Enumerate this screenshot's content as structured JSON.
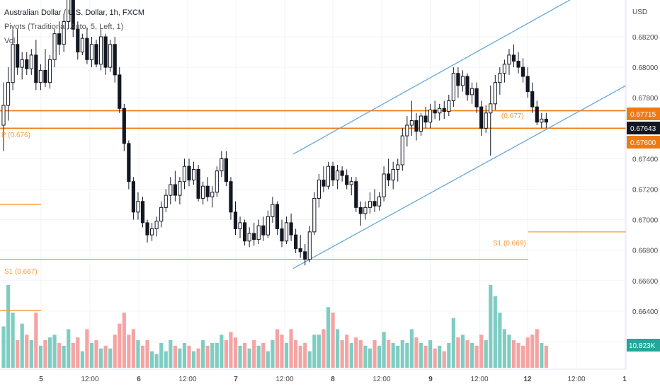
{
  "header": {
    "symbol_title": "Australian Dollar / U.S. Dollar, 1h, FXCM",
    "pivots_title": "Pivots (Traditional, Auto, 5, Left, 1)",
    "vol_title": "Vol"
  },
  "price_axis": {
    "currency": "USD",
    "labels": [
      "0.68200",
      "0.68000",
      "0.67800",
      "0.67600",
      "0.67400",
      "0.67200",
      "0.67000",
      "0.66800",
      "0.66600",
      "0.66400",
      "0.66200"
    ],
    "tags": {
      "pivot_upper": "0.67715",
      "last_price": "0.67643",
      "pivot_lower": "0.67600",
      "volume": "10.823K"
    }
  },
  "time_axis": {
    "labels": [
      "5",
      "12:00",
      "6",
      "12:00",
      "7",
      "12:00",
      "8",
      "12:00",
      "9",
      "12:00",
      "12",
      "12:00",
      "1"
    ]
  },
  "pivot_labels": {
    "p_left": "P (0.676)",
    "p_right": "(0.677)",
    "s1_left": "S1 (0.667)",
    "s1_right": "S1 (0.669)"
  },
  "colors": {
    "up": "#26a69a",
    "down": "#131722",
    "candle_up_body": "#ffffff",
    "vol_up": "#7fcdc2",
    "vol_down": "#f5a3a3",
    "pivot": "#f79a3c",
    "pivot_dark": "#f07a12",
    "channel": "#5aa3dc",
    "grid": "#f0f3fa",
    "axis_text": "#4a4a4a"
  },
  "chart_data": {
    "type": "candlestick",
    "title": "Australian Dollar / U.S. Dollar, 1h, FXCM",
    "y_range": [
      0.6618,
      0.6838
    ],
    "bars": [
      [
        0.6762,
        0.679,
        0.6745,
        0.6775,
        15
      ],
      [
        0.6775,
        0.68,
        0.6765,
        0.679,
        30
      ],
      [
        0.679,
        0.6825,
        0.6785,
        0.6815,
        20
      ],
      [
        0.6815,
        0.6825,
        0.6795,
        0.68,
        10
      ],
      [
        0.68,
        0.681,
        0.6792,
        0.6805,
        16
      ],
      [
        0.6805,
        0.681,
        0.6795,
        0.6799,
        12
      ],
      [
        0.6799,
        0.6812,
        0.6795,
        0.6808,
        10
      ],
      [
        0.6808,
        0.6818,
        0.6785,
        0.679,
        20
      ],
      [
        0.679,
        0.6802,
        0.6785,
        0.6798,
        8
      ],
      [
        0.6798,
        0.6812,
        0.6787,
        0.679,
        10
      ],
      [
        0.679,
        0.6808,
        0.6786,
        0.6805,
        11
      ],
      [
        0.6805,
        0.6825,
        0.68,
        0.6822,
        12
      ],
      [
        0.6822,
        0.683,
        0.6808,
        0.6815,
        9
      ],
      [
        0.6815,
        0.6835,
        0.681,
        0.683,
        8
      ],
      [
        0.683,
        0.685,
        0.6825,
        0.6845,
        14
      ],
      [
        0.6845,
        0.685,
        0.682,
        0.6825,
        9
      ],
      [
        0.6825,
        0.683,
        0.6805,
        0.681,
        11
      ],
      [
        0.681,
        0.6822,
        0.6808,
        0.6819,
        6
      ],
      [
        0.6819,
        0.6826,
        0.6802,
        0.6805,
        14
      ],
      [
        0.6805,
        0.682,
        0.68,
        0.6815,
        9
      ],
      [
        0.6815,
        0.6818,
        0.68,
        0.6802,
        10
      ],
      [
        0.6802,
        0.6825,
        0.6798,
        0.682,
        7
      ],
      [
        0.682,
        0.6822,
        0.6795,
        0.68,
        8
      ],
      [
        0.68,
        0.6818,
        0.6797,
        0.6815,
        7
      ],
      [
        0.6815,
        0.682,
        0.679,
        0.6795,
        12
      ],
      [
        0.6795,
        0.68,
        0.677,
        0.6773,
        16
      ],
      [
        0.6773,
        0.6776,
        0.6745,
        0.675,
        20
      ],
      [
        0.675,
        0.6752,
        0.672,
        0.6725,
        12
      ],
      [
        0.6725,
        0.6728,
        0.67,
        0.6705,
        14
      ],
      [
        0.6705,
        0.6718,
        0.67,
        0.6712,
        10
      ],
      [
        0.6712,
        0.6715,
        0.6695,
        0.6698,
        8
      ],
      [
        0.6698,
        0.67,
        0.6685,
        0.669,
        10
      ],
      [
        0.669,
        0.6698,
        0.6686,
        0.6694,
        6
      ],
      [
        0.6694,
        0.6702,
        0.6689,
        0.6699,
        5
      ],
      [
        0.6699,
        0.6712,
        0.6695,
        0.6708,
        9
      ],
      [
        0.6708,
        0.672,
        0.6705,
        0.6716,
        6
      ],
      [
        0.6716,
        0.6728,
        0.671,
        0.6723,
        10
      ],
      [
        0.6723,
        0.6732,
        0.6712,
        0.6716,
        8
      ],
      [
        0.6716,
        0.6728,
        0.671,
        0.6725,
        7
      ],
      [
        0.6725,
        0.674,
        0.672,
        0.6735,
        9
      ],
      [
        0.6735,
        0.674,
        0.6722,
        0.6726,
        8
      ],
      [
        0.6726,
        0.6738,
        0.6723,
        0.6733,
        6
      ],
      [
        0.6733,
        0.6736,
        0.6712,
        0.6714,
        7
      ],
      [
        0.6714,
        0.6725,
        0.671,
        0.6722,
        10
      ],
      [
        0.6722,
        0.6728,
        0.6712,
        0.6715,
        8
      ],
      [
        0.6715,
        0.6722,
        0.6708,
        0.6718,
        9
      ],
      [
        0.6718,
        0.6735,
        0.6715,
        0.6732,
        9
      ],
      [
        0.6732,
        0.6745,
        0.6728,
        0.674,
        12
      ],
      [
        0.674,
        0.6745,
        0.6722,
        0.6725,
        10
      ],
      [
        0.6725,
        0.6728,
        0.67,
        0.6705,
        13
      ],
      [
        0.6705,
        0.6712,
        0.669,
        0.6694,
        11
      ],
      [
        0.6694,
        0.6702,
        0.6688,
        0.6698,
        8
      ],
      [
        0.6698,
        0.67,
        0.6683,
        0.6686,
        9
      ],
      [
        0.6686,
        0.6695,
        0.6682,
        0.6691,
        7
      ],
      [
        0.6691,
        0.6698,
        0.6683,
        0.6687,
        10
      ],
      [
        0.6687,
        0.67,
        0.6684,
        0.6696,
        8
      ],
      [
        0.6696,
        0.6702,
        0.6686,
        0.669,
        9
      ],
      [
        0.669,
        0.6706,
        0.6688,
        0.6702,
        6
      ],
      [
        0.6702,
        0.6715,
        0.6698,
        0.671,
        10
      ],
      [
        0.671,
        0.6712,
        0.669,
        0.6694,
        14
      ],
      [
        0.6694,
        0.67,
        0.6682,
        0.6686,
        12
      ],
      [
        0.6686,
        0.6702,
        0.6684,
        0.6698,
        9
      ],
      [
        0.6698,
        0.6704,
        0.6686,
        0.669,
        14
      ],
      [
        0.669,
        0.6694,
        0.6678,
        0.6681,
        10
      ],
      [
        0.6681,
        0.669,
        0.6675,
        0.6679,
        8
      ],
      [
        0.6679,
        0.6684,
        0.667,
        0.6674,
        9
      ],
      [
        0.6674,
        0.6696,
        0.6672,
        0.6692,
        6
      ],
      [
        0.6692,
        0.6718,
        0.669,
        0.6714,
        12
      ],
      [
        0.6714,
        0.673,
        0.6708,
        0.6726,
        12
      ],
      [
        0.6726,
        0.6735,
        0.6718,
        0.6722,
        14
      ],
      [
        0.6722,
        0.6738,
        0.672,
        0.6735,
        22
      ],
      [
        0.6735,
        0.6738,
        0.6722,
        0.6726,
        20
      ],
      [
        0.6726,
        0.6736,
        0.672,
        0.6732,
        14
      ],
      [
        0.6732,
        0.6735,
        0.6725,
        0.6729,
        10
      ],
      [
        0.6729,
        0.6733,
        0.672,
        0.6723,
        12
      ],
      [
        0.6723,
        0.6728,
        0.6716,
        0.6725,
        9
      ],
      [
        0.6725,
        0.6728,
        0.6705,
        0.6708,
        11
      ],
      [
        0.6708,
        0.6712,
        0.6696,
        0.6704,
        10
      ],
      [
        0.6704,
        0.6712,
        0.67,
        0.6708,
        8
      ],
      [
        0.6708,
        0.6718,
        0.6704,
        0.6712,
        7
      ],
      [
        0.6712,
        0.672,
        0.6705,
        0.6709,
        10
      ],
      [
        0.6709,
        0.6718,
        0.6706,
        0.6715,
        8
      ],
      [
        0.6715,
        0.6735,
        0.6712,
        0.673,
        13
      ],
      [
        0.673,
        0.674,
        0.6722,
        0.6726,
        10
      ],
      [
        0.6726,
        0.6738,
        0.672,
        0.6733,
        9
      ],
      [
        0.6733,
        0.674,
        0.6725,
        0.6736,
        8
      ],
      [
        0.6736,
        0.676,
        0.6732,
        0.6755,
        10
      ],
      [
        0.6755,
        0.6768,
        0.6748,
        0.6762,
        9
      ],
      [
        0.6762,
        0.6778,
        0.6755,
        0.6765,
        14
      ],
      [
        0.6765,
        0.677,
        0.6752,
        0.6758,
        11
      ],
      [
        0.6758,
        0.677,
        0.6755,
        0.6768,
        9
      ],
      [
        0.6768,
        0.6774,
        0.676,
        0.6764,
        8
      ],
      [
        0.6764,
        0.6776,
        0.676,
        0.6772,
        10
      ],
      [
        0.6772,
        0.6778,
        0.6766,
        0.677,
        7
      ],
      [
        0.677,
        0.6776,
        0.6765,
        0.6773,
        8
      ],
      [
        0.6773,
        0.6778,
        0.6766,
        0.6771,
        6
      ],
      [
        0.6771,
        0.6782,
        0.6768,
        0.6778,
        9
      ],
      [
        0.6778,
        0.68,
        0.6774,
        0.6796,
        18
      ],
      [
        0.6796,
        0.68,
        0.678,
        0.6788,
        11
      ],
      [
        0.6788,
        0.6798,
        0.6784,
        0.6794,
        12
      ],
      [
        0.6794,
        0.6796,
        0.6778,
        0.6782,
        10
      ],
      [
        0.6782,
        0.679,
        0.6776,
        0.6786,
        9
      ],
      [
        0.6786,
        0.679,
        0.677,
        0.6774,
        8
      ],
      [
        0.6774,
        0.6778,
        0.6755,
        0.676,
        12
      ],
      [
        0.676,
        0.6775,
        0.6757,
        0.677,
        10
      ],
      [
        0.677,
        0.6788,
        0.6742,
        0.6776,
        30
      ],
      [
        0.6776,
        0.6795,
        0.6772,
        0.679,
        26
      ],
      [
        0.679,
        0.68,
        0.6782,
        0.6796,
        20
      ],
      [
        0.6796,
        0.6805,
        0.679,
        0.6802,
        14
      ],
      [
        0.6802,
        0.6812,
        0.6795,
        0.6808,
        12
      ],
      [
        0.6808,
        0.6815,
        0.68,
        0.6804,
        10
      ],
      [
        0.6804,
        0.681,
        0.6796,
        0.68,
        9
      ],
      [
        0.68,
        0.6806,
        0.679,
        0.6794,
        8
      ],
      [
        0.6794,
        0.68,
        0.678,
        0.6784,
        11
      ],
      [
        0.6784,
        0.679,
        0.677,
        0.6774,
        12
      ],
      [
        0.6774,
        0.6778,
        0.6762,
        0.6764,
        14
      ],
      [
        0.6764,
        0.677,
        0.676,
        0.6766,
        9
      ],
      [
        0.6766,
        0.677,
        0.676,
        0.6764,
        8
      ]
    ],
    "pivot_lines": [
      {
        "label": "P (0.676)",
        "value": 0.676
      },
      {
        "label": "(0.677)",
        "value": 0.67715
      },
      {
        "label": "S1 (0.667)",
        "value": 0.6674
      },
      {
        "label": "S1 (0.669)",
        "value": 0.6692
      }
    ],
    "channel": {
      "upper": [
        [
          "5",
          0.6743
        ],
        [
          "12",
          0.6845
        ]
      ],
      "lower": [
        [
          "8",
          0.6668
        ],
        [
          "1",
          0.6788
        ]
      ]
    }
  }
}
